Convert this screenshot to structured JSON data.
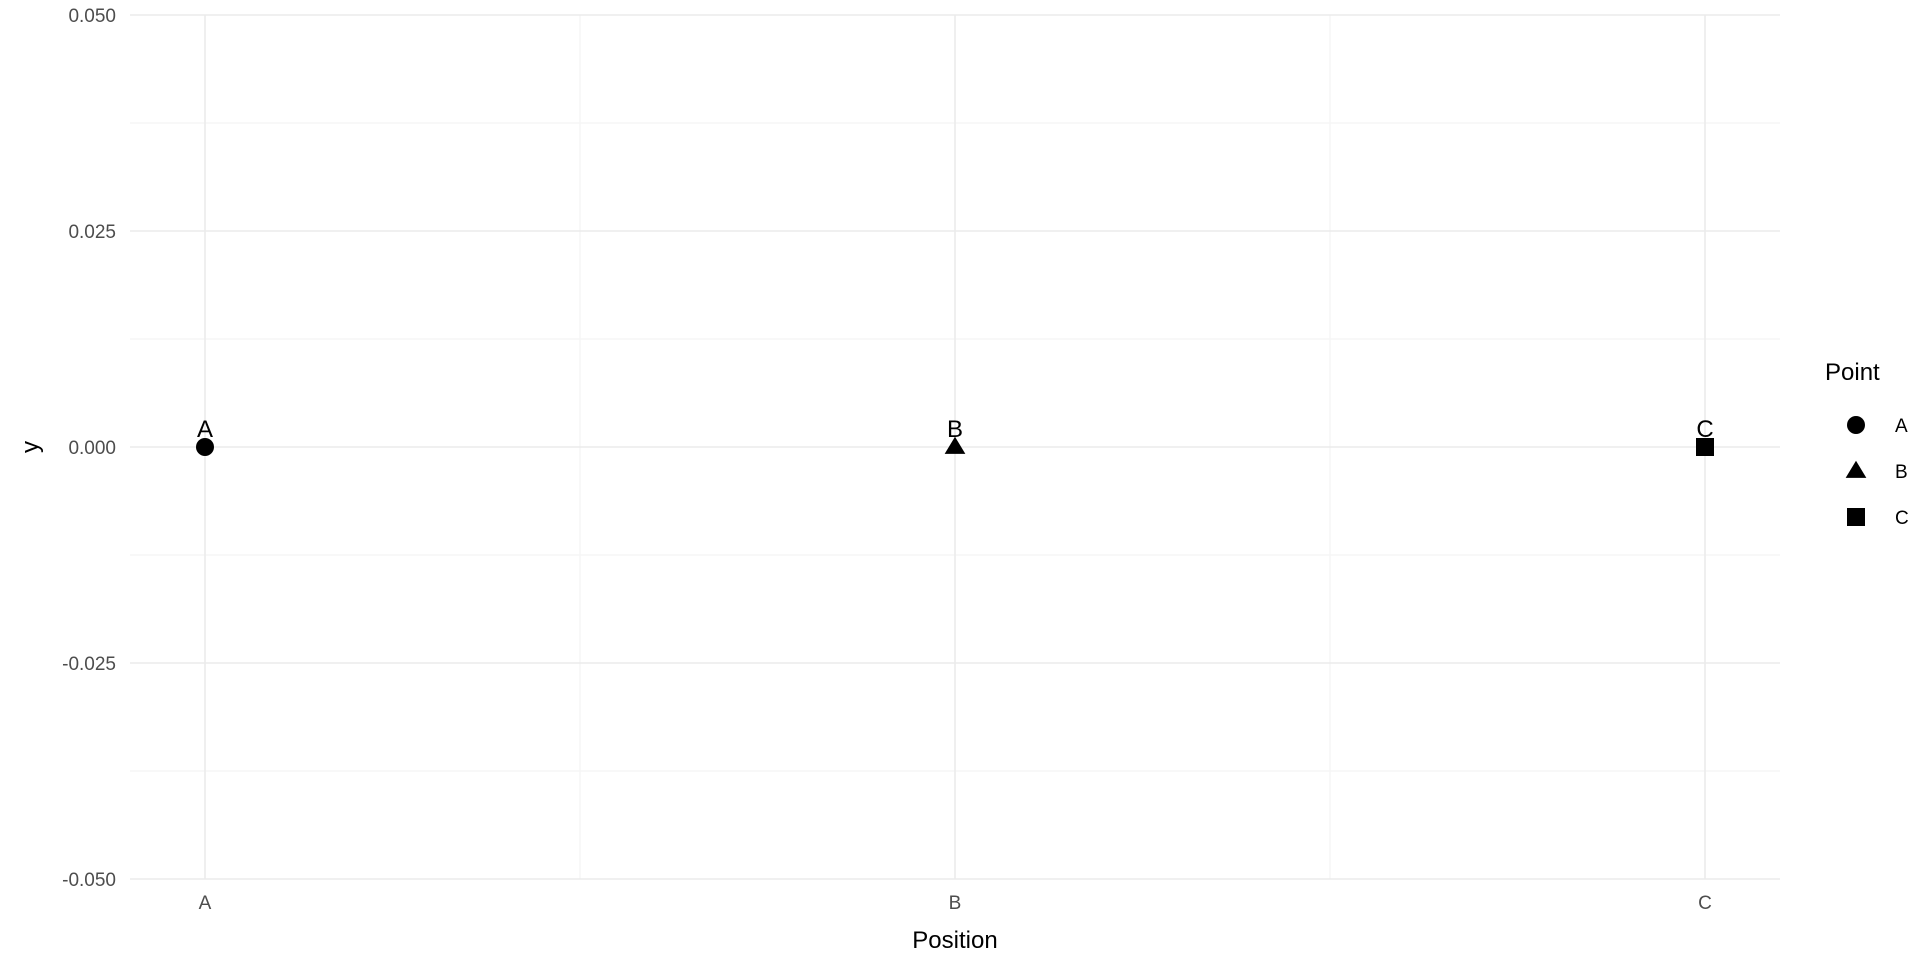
{
  "chart_data": {
    "type": "scatter",
    "title": "",
    "xlabel": "Position",
    "ylabel": "y",
    "categories": [
      "A",
      "B",
      "C"
    ],
    "ylim": [
      -0.05,
      0.05
    ],
    "yticks": [
      -0.05,
      -0.025,
      0,
      0.025,
      0.05
    ],
    "ytick_labels": [
      "-0.050",
      "-0.025",
      "0.000",
      "0.025",
      "0.050"
    ],
    "grid": true,
    "points": [
      {
        "x": "A",
        "y": 0,
        "label": "A",
        "shape": "circle"
      },
      {
        "x": "B",
        "y": 0,
        "label": "B",
        "shape": "triangle"
      },
      {
        "x": "C",
        "y": 0,
        "label": "C",
        "shape": "square"
      }
    ],
    "legend": {
      "title": "Point",
      "position": "right",
      "entries": [
        {
          "label": "A",
          "shape": "circle"
        },
        {
          "label": "B",
          "shape": "triangle"
        },
        {
          "label": "C",
          "shape": "square"
        }
      ]
    },
    "colors": {
      "marker": "#000000",
      "grid_major": "#ebebeb",
      "grid_minor": "#f4f4f4",
      "tick_text": "#4d4d4d"
    }
  }
}
